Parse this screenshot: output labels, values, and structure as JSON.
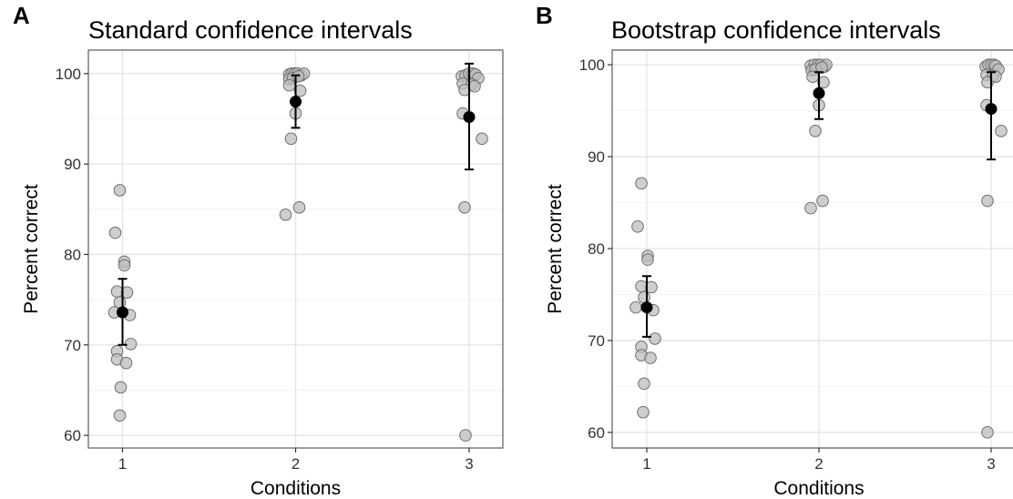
{
  "chart_data": [
    {
      "type": "scatter",
      "letter": "A",
      "title": "Standard confidence intervals",
      "xlabel": "Conditions",
      "ylabel": "Percent correct",
      "categories": [
        "1",
        "2",
        "3"
      ],
      "ylim": [
        58.6,
        102.6
      ],
      "yticks": [
        60,
        70,
        80,
        90,
        100
      ],
      "grid": true,
      "raw_points": [
        {
          "condition": 1,
          "jitter": -0.03,
          "value": 87.1
        },
        {
          "condition": 1,
          "jitter": -0.08,
          "value": 82.4
        },
        {
          "condition": 1,
          "jitter": 0.02,
          "value": 79.2
        },
        {
          "condition": 1,
          "jitter": 0.02,
          "value": 78.8
        },
        {
          "condition": 1,
          "jitter": -0.06,
          "value": 75.9
        },
        {
          "condition": 1,
          "jitter": 0.05,
          "value": 75.8
        },
        {
          "condition": 1,
          "jitter": -0.03,
          "value": 74.7
        },
        {
          "condition": 1,
          "jitter": -0.09,
          "value": 73.6
        },
        {
          "condition": 1,
          "jitter": 0.08,
          "value": 73.3
        },
        {
          "condition": 1,
          "jitter": 0.09,
          "value": 70.1
        },
        {
          "condition": 1,
          "jitter": -0.06,
          "value": 69.3
        },
        {
          "condition": 1,
          "jitter": -0.06,
          "value": 68.4
        },
        {
          "condition": 1,
          "jitter": 0.04,
          "value": 68.0
        },
        {
          "condition": 1,
          "jitter": -0.02,
          "value": 65.3
        },
        {
          "condition": 1,
          "jitter": -0.03,
          "value": 62.2
        },
        {
          "condition": 2,
          "jitter": -0.07,
          "value": 99.9
        },
        {
          "condition": 2,
          "jitter": -0.04,
          "value": 100.0
        },
        {
          "condition": 2,
          "jitter": -0.01,
          "value": 100.0
        },
        {
          "condition": 2,
          "jitter": 0.02,
          "value": 100.0
        },
        {
          "condition": 2,
          "jitter": 0.06,
          "value": 99.8
        },
        {
          "condition": 2,
          "jitter": 0.09,
          "value": 100.0
        },
        {
          "condition": 2,
          "jitter": -0.07,
          "value": 99.4
        },
        {
          "condition": 2,
          "jitter": -0.03,
          "value": 99.5
        },
        {
          "condition": 2,
          "jitter": -0.07,
          "value": 98.7
        },
        {
          "condition": 2,
          "jitter": 0.03,
          "value": 99.7
        },
        {
          "condition": 2,
          "jitter": 0.05,
          "value": 98.1
        },
        {
          "condition": 2,
          "jitter": 0.0,
          "value": 95.6
        },
        {
          "condition": 2,
          "jitter": -0.05,
          "value": 92.8
        },
        {
          "condition": 2,
          "jitter": -0.11,
          "value": 84.4
        },
        {
          "condition": 2,
          "jitter": 0.04,
          "value": 85.2
        },
        {
          "condition": 3,
          "jitter": -0.08,
          "value": 99.7
        },
        {
          "condition": 3,
          "jitter": -0.04,
          "value": 99.8
        },
        {
          "condition": 3,
          "jitter": 0.0,
          "value": 100.0
        },
        {
          "condition": 3,
          "jitter": 0.04,
          "value": 100.0
        },
        {
          "condition": 3,
          "jitter": 0.07,
          "value": 99.9
        },
        {
          "condition": 3,
          "jitter": 0.1,
          "value": 99.5
        },
        {
          "condition": 3,
          "jitter": -0.07,
          "value": 98.9
        },
        {
          "condition": 3,
          "jitter": 0.03,
          "value": 98.8
        },
        {
          "condition": 3,
          "jitter": -0.05,
          "value": 98.2
        },
        {
          "condition": 3,
          "jitter": 0.06,
          "value": 98.6
        },
        {
          "condition": 3,
          "jitter": -0.07,
          "value": 95.6
        },
        {
          "condition": 3,
          "jitter": 0.14,
          "value": 92.8
        },
        {
          "condition": 3,
          "jitter": -0.05,
          "value": 85.2
        },
        {
          "condition": 3,
          "jitter": -0.04,
          "value": 60.0
        }
      ],
      "summary": [
        {
          "condition": 1,
          "mean": 73.6,
          "lower": 70.0,
          "upper": 77.3
        },
        {
          "condition": 2,
          "mean": 96.9,
          "lower": 94.0,
          "upper": 99.8
        },
        {
          "condition": 3,
          "mean": 95.2,
          "lower": 89.4,
          "upper": 101.1
        }
      ]
    },
    {
      "type": "scatter",
      "letter": "B",
      "title": "Bootstrap confidence intervals",
      "xlabel": "Conditions",
      "ylabel": "Percent correct",
      "categories": [
        "1",
        "2",
        "3"
      ],
      "ylim": [
        58.3,
        101.6
      ],
      "yticks": [
        60,
        70,
        80,
        90,
        100
      ],
      "grid": true,
      "raw_points": [
        {
          "condition": 1,
          "jitter": -0.06,
          "value": 87.1
        },
        {
          "condition": 1,
          "jitter": -0.1,
          "value": 82.4
        },
        {
          "condition": 1,
          "jitter": 0.01,
          "value": 79.2
        },
        {
          "condition": 1,
          "jitter": 0.01,
          "value": 78.8
        },
        {
          "condition": 1,
          "jitter": -0.06,
          "value": 75.9
        },
        {
          "condition": 1,
          "jitter": 0.05,
          "value": 75.8
        },
        {
          "condition": 1,
          "jitter": -0.03,
          "value": 74.7
        },
        {
          "condition": 1,
          "jitter": -0.12,
          "value": 73.6
        },
        {
          "condition": 1,
          "jitter": 0.07,
          "value": 73.3
        },
        {
          "condition": 1,
          "jitter": 0.09,
          "value": 70.2
        },
        {
          "condition": 1,
          "jitter": -0.06,
          "value": 69.3
        },
        {
          "condition": 1,
          "jitter": -0.06,
          "value": 68.4
        },
        {
          "condition": 1,
          "jitter": 0.04,
          "value": 68.1
        },
        {
          "condition": 1,
          "jitter": -0.03,
          "value": 65.3
        },
        {
          "condition": 1,
          "jitter": -0.04,
          "value": 62.2
        },
        {
          "condition": 2,
          "jitter": -0.09,
          "value": 99.9
        },
        {
          "condition": 2,
          "jitter": -0.05,
          "value": 100.0
        },
        {
          "condition": 2,
          "jitter": -0.01,
          "value": 100.0
        },
        {
          "condition": 2,
          "jitter": 0.02,
          "value": 100.0
        },
        {
          "condition": 2,
          "jitter": 0.06,
          "value": 99.8
        },
        {
          "condition": 2,
          "jitter": 0.08,
          "value": 100.0
        },
        {
          "condition": 2,
          "jitter": -0.08,
          "value": 99.4
        },
        {
          "condition": 2,
          "jitter": -0.04,
          "value": 99.5
        },
        {
          "condition": 2,
          "jitter": -0.07,
          "value": 98.7
        },
        {
          "condition": 2,
          "jitter": 0.03,
          "value": 99.7
        },
        {
          "condition": 2,
          "jitter": 0.05,
          "value": 98.1
        },
        {
          "condition": 2,
          "jitter": 0.0,
          "value": 95.6
        },
        {
          "condition": 2,
          "jitter": -0.04,
          "value": 92.8
        },
        {
          "condition": 2,
          "jitter": -0.09,
          "value": 84.4
        },
        {
          "condition": 2,
          "jitter": 0.04,
          "value": 85.2
        },
        {
          "condition": 3,
          "jitter": -0.06,
          "value": 99.8
        },
        {
          "condition": 3,
          "jitter": -0.03,
          "value": 100.0
        },
        {
          "condition": 3,
          "jitter": 0.0,
          "value": 100.0
        },
        {
          "condition": 3,
          "jitter": 0.03,
          "value": 100.0
        },
        {
          "condition": 3,
          "jitter": 0.05,
          "value": 99.9
        },
        {
          "condition": 3,
          "jitter": 0.08,
          "value": 99.5
        },
        {
          "condition": 3,
          "jitter": -0.05,
          "value": 98.9
        },
        {
          "condition": 3,
          "jitter": 0.02,
          "value": 98.8
        },
        {
          "condition": 3,
          "jitter": -0.04,
          "value": 98.1
        },
        {
          "condition": 3,
          "jitter": 0.05,
          "value": 98.7
        },
        {
          "condition": 3,
          "jitter": -0.05,
          "value": 95.6
        },
        {
          "condition": 3,
          "jitter": 0.11,
          "value": 92.8
        },
        {
          "condition": 3,
          "jitter": -0.04,
          "value": 85.2
        },
        {
          "condition": 3,
          "jitter": -0.04,
          "value": 60.0
        }
      ],
      "summary": [
        {
          "condition": 1,
          "mean": 73.6,
          "lower": 70.4,
          "upper": 77.0
        },
        {
          "condition": 2,
          "mean": 96.9,
          "lower": 94.1,
          "upper": 99.2
        },
        {
          "condition": 3,
          "mean": 95.2,
          "lower": 89.7,
          "upper": 99.2
        }
      ]
    }
  ]
}
